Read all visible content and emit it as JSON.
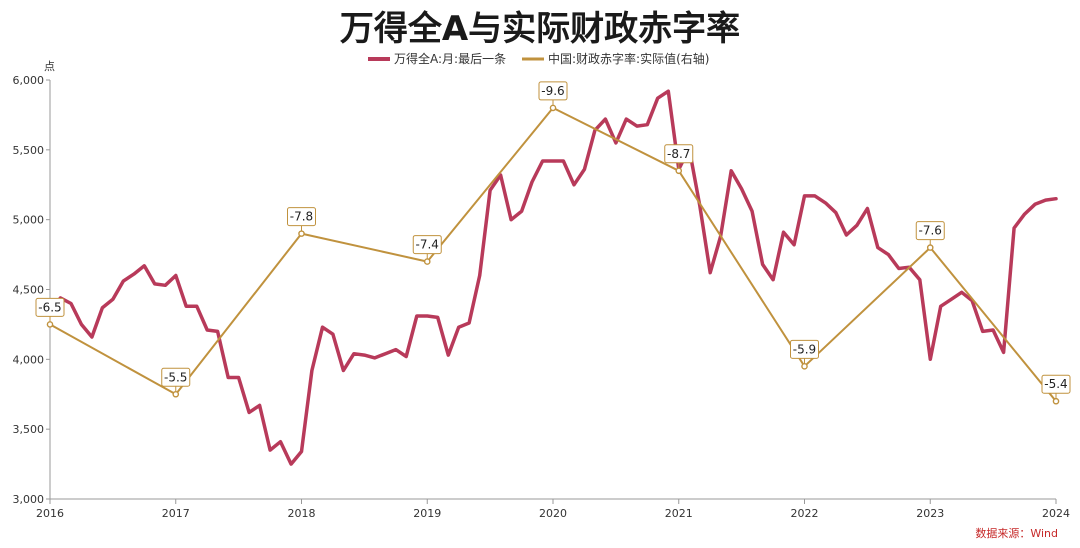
{
  "chart_data": {
    "type": "line",
    "title": "万得全A与实际财政赤字率",
    "ylabel": "点",
    "ylim": [
      3000,
      6000
    ],
    "y_ticks": [
      "3,000",
      "3,500",
      "4,000",
      "4,500",
      "5,000",
      "5,500",
      "6,000"
    ],
    "y_tick_values": [
      3000,
      3500,
      4000,
      4500,
      5000,
      5500,
      6000
    ],
    "y2lim": [
      -4.0,
      -10.0
    ],
    "xlim": [
      2016,
      2024
    ],
    "x_ticks": [
      "2016",
      "2017",
      "2018",
      "2019",
      "2020",
      "2021",
      "2022",
      "2023",
      "2024"
    ],
    "x_tick_values": [
      2016,
      2017,
      2018,
      2019,
      2020,
      2021,
      2022,
      2023,
      2024
    ],
    "grid": false,
    "legend_position": "top-center",
    "source": "数据来源：Wind",
    "series": [
      {
        "name": "万得全A:月:最后一条",
        "color": "#b83a5a",
        "axis": "left",
        "x": [
          2016.0,
          2016.083,
          2016.167,
          2016.25,
          2016.333,
          2016.417,
          2016.5,
          2016.583,
          2016.667,
          2016.75,
          2016.833,
          2016.917,
          2017.0,
          2017.083,
          2017.167,
          2017.25,
          2017.333,
          2017.417,
          2017.5,
          2017.583,
          2017.667,
          2017.75,
          2017.833,
          2017.917,
          2018.0,
          2018.083,
          2018.167,
          2018.25,
          2018.333,
          2018.417,
          2018.5,
          2018.583,
          2018.667,
          2018.75,
          2018.833,
          2018.917,
          2019.0,
          2019.083,
          2019.167,
          2019.25,
          2019.333,
          2019.417,
          2019.5,
          2019.583,
          2019.667,
          2019.75,
          2019.833,
          2019.917,
          2020.0,
          2020.083,
          2020.167,
          2020.25,
          2020.333,
          2020.417,
          2020.5,
          2020.583,
          2020.667,
          2020.75,
          2020.833,
          2020.917,
          2021.0,
          2021.083,
          2021.167,
          2021.25,
          2021.333,
          2021.417,
          2021.5,
          2021.583,
          2021.667,
          2021.75,
          2021.833,
          2021.917,
          2022.0,
          2022.083,
          2022.167,
          2022.25,
          2022.333,
          2022.417,
          2022.5,
          2022.583,
          2022.667,
          2022.75,
          2022.833,
          2022.917,
          2023.0,
          2023.083,
          2023.167,
          2023.25,
          2023.333,
          2023.417,
          2023.5,
          2023.583,
          2023.667,
          2023.75,
          2023.833,
          2023.917,
          2024.0
        ],
        "values": [
          4320,
          4440,
          4400,
          4250,
          4160,
          4370,
          4430,
          4560,
          4610,
          4670,
          4540,
          4530,
          4600,
          4380,
          4380,
          4210,
          4200,
          3870,
          3870,
          3620,
          3670,
          3350,
          3410,
          3250,
          3340,
          3920,
          4230,
          4180,
          3920,
          4040,
          4030,
          4010,
          4040,
          4070,
          4020,
          4310,
          4310,
          4300,
          4030,
          4230,
          4260,
          4600,
          5210,
          5320,
          5000,
          5060,
          5270,
          5420,
          5420,
          5420,
          5250,
          5360,
          5640,
          5720,
          5550,
          5720,
          5670,
          5680,
          5870,
          5920,
          5360,
          5510,
          5100,
          4620,
          4880,
          5350,
          5220,
          5060,
          4680,
          4570,
          4910,
          4820,
          5170,
          5170,
          5120,
          5050,
          4890,
          4960,
          5080,
          4800,
          4750,
          4650,
          4660,
          4570,
          4000,
          4380,
          4430,
          4480,
          4420,
          4200,
          4210,
          4050,
          4940,
          5040,
          5110,
          5140,
          5150
        ]
      },
      {
        "name": "中国:财政赤字率:实际值(右轴)",
        "color": "#c0923e",
        "axis": "right",
        "x": [
          2016,
          2017,
          2018,
          2019,
          2020,
          2021,
          2022,
          2023,
          2024
        ],
        "values": [
          -6.5,
          -5.5,
          -7.8,
          -7.4,
          -9.6,
          -8.7,
          -5.9,
          -7.6,
          -5.4
        ],
        "labels": [
          "-6.5",
          "-5.5",
          "-7.8",
          "-7.4",
          "-9.6",
          "-8.7",
          "-5.9",
          "-7.6",
          "-5.4"
        ]
      }
    ]
  },
  "colors": {
    "axis": "#999999",
    "label_border": "#c0923e",
    "source": "#c62828"
  }
}
